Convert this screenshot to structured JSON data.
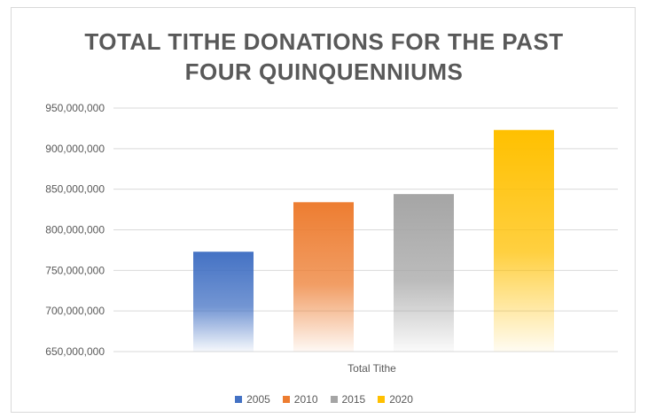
{
  "chart_data": {
    "type": "bar",
    "title_lines": [
      "TOTAL TITHE DONATIONS FOR THE PAST",
      "FOUR QUINQUENNIUMS"
    ],
    "categories": [
      "Total Tithe"
    ],
    "series": [
      {
        "name": "2005",
        "values": [
          773000000
        ],
        "color": "#4472C4"
      },
      {
        "name": "2010",
        "values": [
          834000000
        ],
        "color": "#ED7D31"
      },
      {
        "name": "2015",
        "values": [
          844000000
        ],
        "color": "#A5A5A5"
      },
      {
        "name": "2020",
        "values": [
          923000000
        ],
        "color": "#FFC000"
      }
    ],
    "yticks": [
      "650,000,000",
      "700,000,000",
      "750,000,000",
      "800,000,000",
      "850,000,000",
      "900,000,000",
      "950,000,000"
    ],
    "ylim": [
      650000000,
      950000000
    ],
    "xlabel": "",
    "ylabel": "",
    "grid": true,
    "legend": "bottom",
    "bar_fill": "gradient-fade-to-white"
  }
}
